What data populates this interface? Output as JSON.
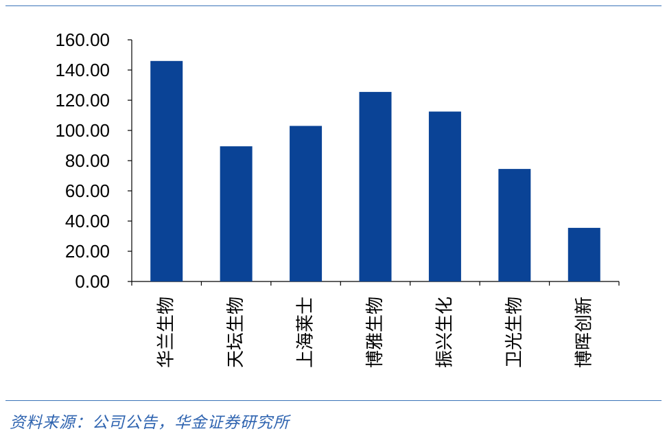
{
  "chart_data": {
    "type": "bar",
    "categories": [
      "华兰生物",
      "天坛生物",
      "上海莱士",
      "博雅生物",
      "振兴生化",
      "卫光生物",
      "博晖创新"
    ],
    "values": [
      146,
      89.5,
      103,
      125.5,
      112.5,
      74.5,
      35.5
    ],
    "yticks": [
      "0.00",
      "20.00",
      "40.00",
      "60.00",
      "80.00",
      "100.00",
      "120.00",
      "140.00",
      "160.00"
    ],
    "ylim": [
      0,
      160
    ],
    "title": "",
    "xlabel": "",
    "ylabel": "",
    "grid": false,
    "bar_color": "#0a4396"
  },
  "footer": {
    "source": "资料来源：公司公告，华金证券研究所"
  },
  "colors": {
    "rule": "#3a73b8",
    "source_text": "#2f64b0"
  }
}
